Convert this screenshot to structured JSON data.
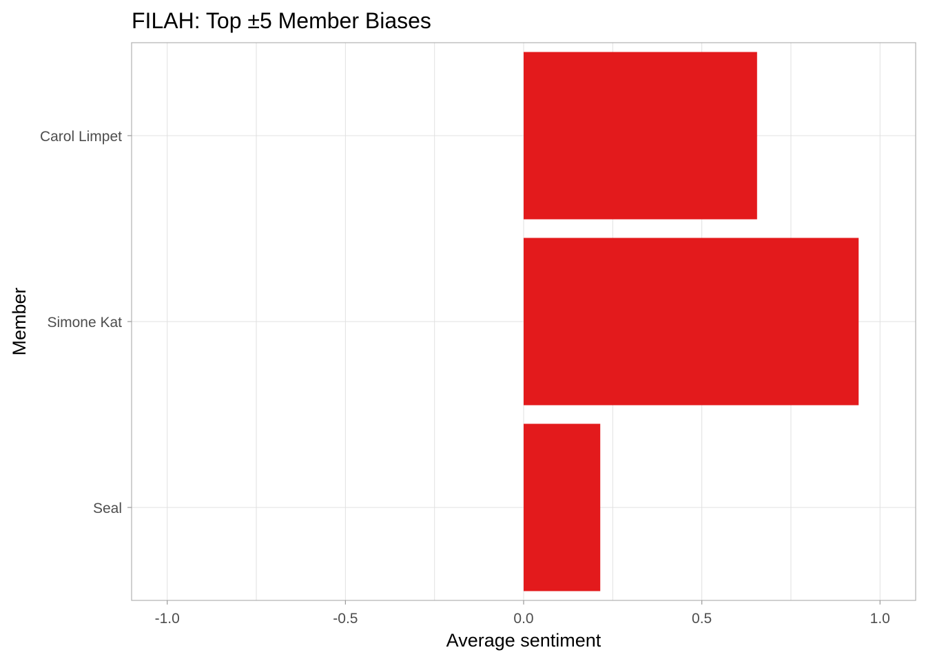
{
  "chart_data": {
    "type": "bar",
    "orientation": "horizontal",
    "title": "FILAH: Top ±5 Member Biases",
    "xlabel": "Average sentiment",
    "ylabel": "Member",
    "categories": [
      "Carol Limpet",
      "Simone Kat",
      "Seal"
    ],
    "values": [
      0.655,
      0.94,
      0.215
    ],
    "xlim": [
      -1.1,
      1.1
    ],
    "xticks": [
      -1.0,
      -0.5,
      0.0,
      0.5,
      1.0
    ],
    "xtick_labels": [
      "-1.0",
      "-0.5",
      "0.0",
      "0.5",
      "1.0"
    ],
    "bar_color": "#e31a1c",
    "grid": true,
    "legend": "none"
  }
}
